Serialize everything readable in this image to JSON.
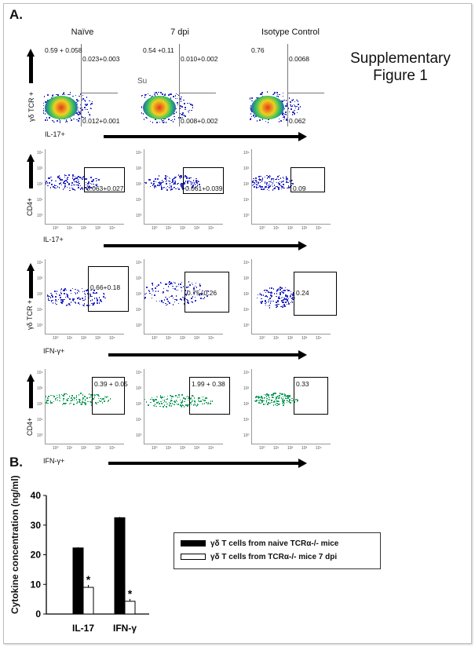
{
  "panel_a_label": "A.",
  "panel_b_label": "B.",
  "supplementary": {
    "line1": "Supplementary",
    "line2": "Figure 1"
  },
  "overlap_text": "Su",
  "columns": [
    "Naïve",
    "7 dpi",
    "Isotype Control"
  ],
  "rows": [
    {
      "ylabel": "γδ TCR +",
      "xlabel": "IL-17+",
      "cells": [
        {
          "ul": "0.59 + 0.058",
          "ur": "0.023+0.003",
          "lr": "0.012+0.001"
        },
        {
          "ul": "0.54 +0.11",
          "ur": "0.010+0.002",
          "lr": "0.008+0.002"
        },
        {
          "ul": "0.76",
          "ur": "0.0068",
          "lr": "0.062"
        }
      ]
    },
    {
      "ylabel": "CD4+",
      "xlabel": "IL-17+",
      "cells": [
        {
          "gate": "0.063+0.027"
        },
        {
          "gate": "0.061+0.039"
        },
        {
          "gate": "0.09"
        }
      ]
    },
    {
      "ylabel": "γδ TCR +",
      "xlabel": "IFN-γ+",
      "cells": [
        {
          "gate": "0.66+0.18"
        },
        {
          "gate": "0.75+0.26"
        },
        {
          "gate": "0.24"
        }
      ]
    },
    {
      "ylabel": "CD4+",
      "xlabel": "IFN-γ+",
      "cells": [
        {
          "gate": "0.39 + 0.05"
        },
        {
          "gate": "1.99 + 0.38"
        },
        {
          "gate": "0.33"
        }
      ]
    }
  ],
  "ticks": {
    "y": [
      "10⁴",
      "10³",
      "10²",
      "10¹",
      "10⁰"
    ],
    "x": [
      "10⁰",
      "10¹",
      "10²",
      "10³",
      "10⁴"
    ]
  },
  "colors": {
    "dots": "#2b2ec4",
    "hot": "#e43a1a",
    "bar1": "#000000",
    "bar2": "#ffffff"
  },
  "chart_data": {
    "type": "bar",
    "ylabel": "Cytokine concentration (ng/ml)",
    "categories": [
      "IL-17",
      "IFN-γ"
    ],
    "ylim": [
      0,
      40
    ],
    "yticks": [
      0,
      10,
      20,
      30,
      40
    ],
    "series": [
      {
        "name": "γδ T cells from naive TCRα-/- mice",
        "values": [
          22.3,
          32.5
        ]
      },
      {
        "name": "γδ T cells from TCRα-/- mice 7 dpi",
        "values": [
          9.0,
          4.3
        ]
      }
    ],
    "annotations": [
      "*",
      "*"
    ]
  }
}
